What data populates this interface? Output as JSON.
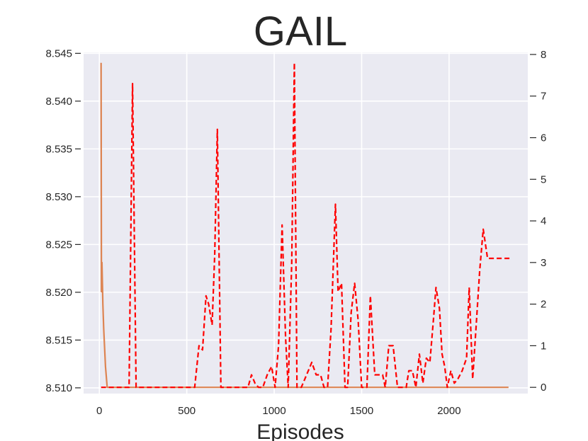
{
  "chart_data": {
    "type": "line",
    "title": "GAIL",
    "xlabel": "Episodes",
    "ylabel": "",
    "y2label": "",
    "xlim": [
      -90,
      2450
    ],
    "ylim": [
      8.5094,
      8.5451
    ],
    "y2lim": [
      -0.15,
      8.05
    ],
    "x_ticks": [
      0,
      500,
      1000,
      1500,
      2000
    ],
    "x_tick_labels": [
      "0",
      "500",
      "1000",
      "1500",
      "2000"
    ],
    "y_ticks": [
      8.51,
      8.515,
      8.52,
      8.525,
      8.53,
      8.535,
      8.54,
      8.545
    ],
    "y_tick_labels": [
      "8.510",
      "8.515",
      "8.520",
      "8.525",
      "8.530",
      "8.535",
      "8.540",
      "8.545"
    ],
    "y2_ticks": [
      0,
      1,
      2,
      3,
      4,
      5,
      6,
      7,
      8
    ],
    "y2_tick_labels": [
      "0",
      "1",
      "2",
      "3",
      "4",
      "5",
      "6",
      "7",
      "8"
    ],
    "grid": true,
    "colors": {
      "background": "#eaeaf2",
      "grid": "#ffffff",
      "solid_line": "#dd8452",
      "dashed_line": "#ff0000",
      "text": "#262626"
    },
    "series": [
      {
        "axis": "right",
        "style": "solid",
        "color": "#dd8452",
        "x": [
          10,
          12,
          15,
          20,
          25,
          35,
          45,
          200,
          500,
          1000,
          1500,
          2000,
          2340
        ],
        "y": [
          7.8,
          2.3,
          3.0,
          2.0,
          1.4,
          0.5,
          0.0,
          0.0,
          0.0,
          0.0,
          0.0,
          0.0,
          0.0
        ]
      },
      {
        "axis": "right",
        "style": "dashed",
        "color": "#ff0000",
        "x": [
          10,
          170,
          190,
          210,
          230,
          400,
          545,
          570,
          590,
          610,
          625,
          645,
          660,
          675,
          695,
          715,
          750,
          850,
          870,
          890,
          910,
          935,
          960,
          985,
          1005,
          1025,
          1045,
          1065,
          1080,
          1100,
          1115,
          1130,
          1155,
          1175,
          1195,
          1215,
          1240,
          1265,
          1285,
          1305,
          1325,
          1350,
          1365,
          1385,
          1405,
          1420,
          1440,
          1460,
          1480,
          1500,
          1515,
          1530,
          1550,
          1575,
          1600,
          1620,
          1635,
          1655,
          1680,
          1705,
          1730,
          1755,
          1770,
          1790,
          1810,
          1830,
          1850,
          1870,
          1890,
          1910,
          1925,
          1945,
          1960,
          1975,
          1990,
          2010,
          2030,
          2050,
          2075,
          2100,
          2115,
          2135,
          2155,
          2175,
          2195,
          2220,
          2245,
          2260,
          2280,
          2300,
          2320,
          2345
        ],
        "y": [
          0.0,
          0.0,
          7.3,
          0.0,
          0.0,
          0.0,
          0.0,
          1.0,
          0.9,
          2.2,
          2.0,
          1.5,
          3.2,
          6.2,
          0.0,
          0.0,
          0.0,
          0.0,
          0.3,
          0.1,
          0.0,
          0.0,
          0.3,
          0.5,
          0.0,
          1.0,
          3.9,
          1.2,
          0.0,
          3.0,
          7.8,
          0.0,
          0.0,
          0.2,
          0.4,
          0.6,
          0.3,
          0.3,
          0.0,
          0.0,
          1.4,
          4.4,
          2.3,
          2.5,
          0.0,
          0.0,
          1.8,
          2.5,
          1.6,
          0.0,
          0.0,
          0.0,
          2.2,
          0.3,
          0.3,
          0.3,
          0.0,
          1.0,
          1.0,
          0.0,
          0.0,
          0.0,
          0.4,
          0.4,
          0.0,
          0.8,
          0.1,
          0.7,
          0.6,
          1.6,
          2.4,
          1.9,
          0.8,
          0.5,
          0.0,
          0.4,
          0.1,
          0.2,
          0.4,
          0.7,
          2.4,
          0.2,
          1.5,
          2.8,
          3.8,
          3.1,
          3.1,
          3.1,
          3.1,
          3.1,
          3.1,
          3.1
        ]
      }
    ]
  }
}
